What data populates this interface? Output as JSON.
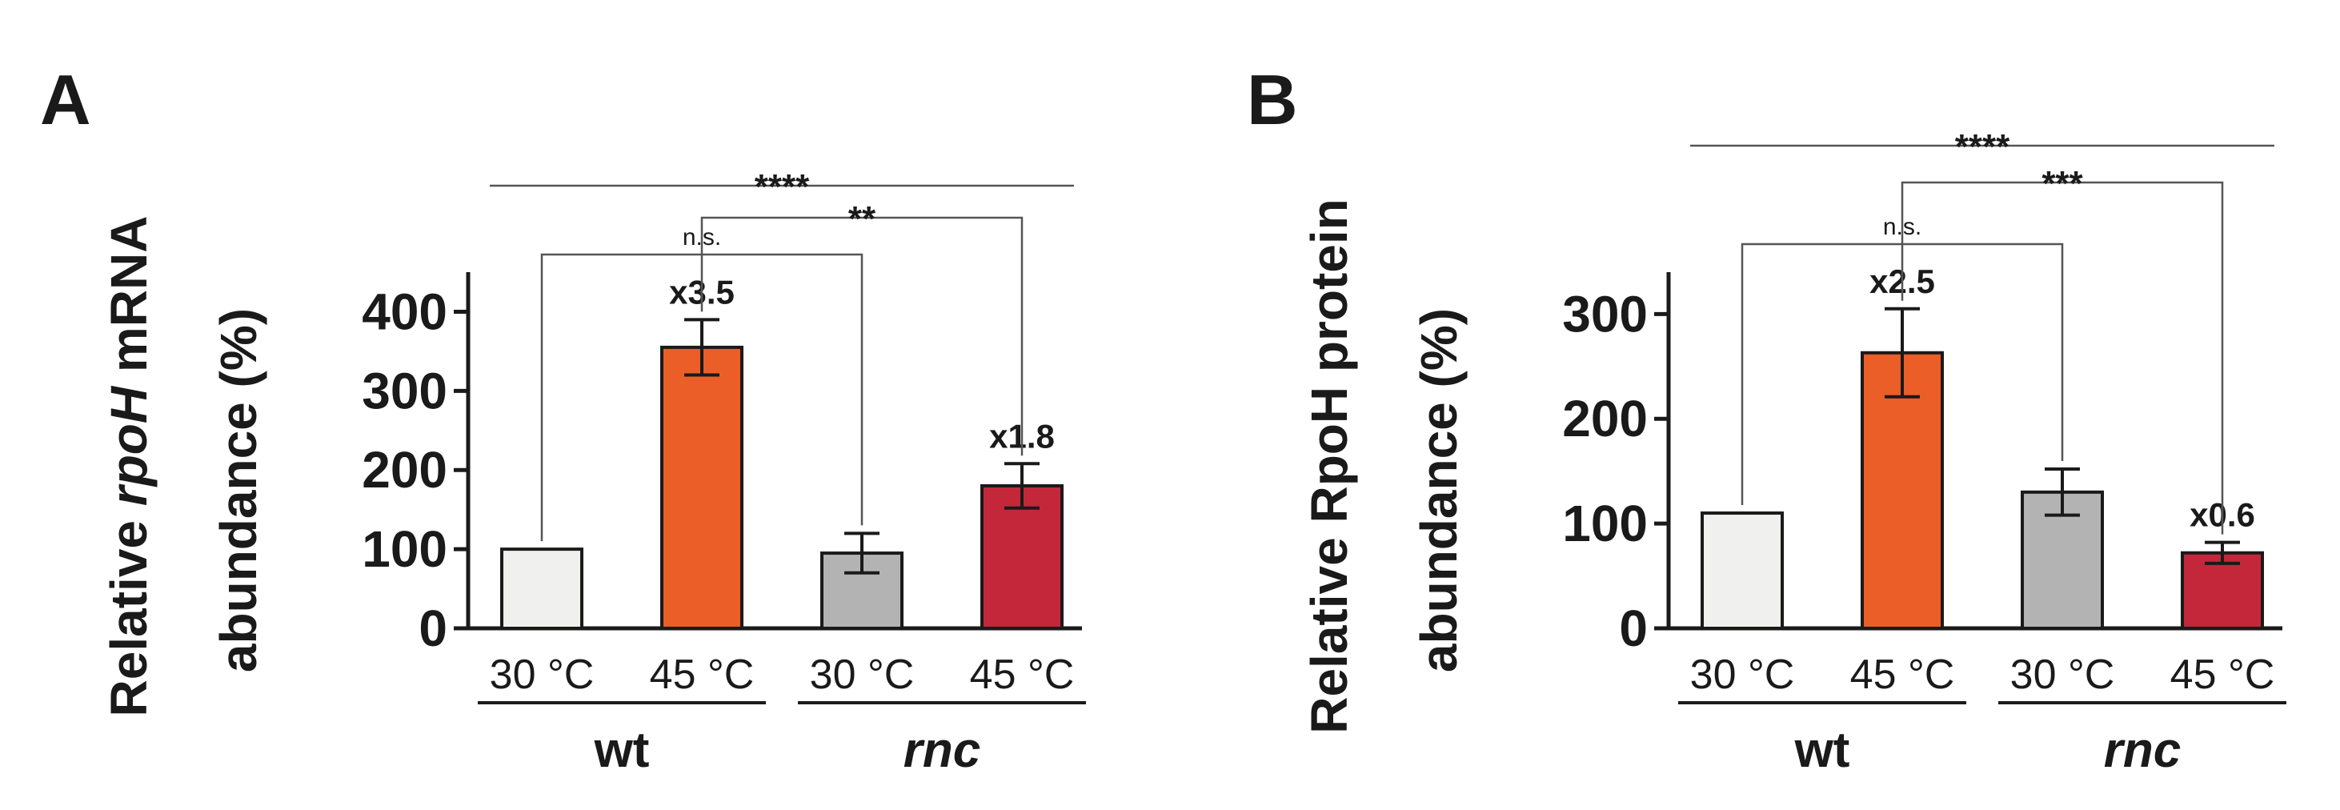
{
  "chart_data": [
    {
      "type": "bar",
      "panel_label": "A",
      "ylabel_parts": [
        "Relative ",
        "rpoH",
        " mRNA",
        "abundance (%)"
      ],
      "ylim": [
        0,
        450
      ],
      "yticks": [
        0,
        100,
        200,
        300,
        400
      ],
      "categories": [
        "30 °C",
        "45 °C",
        "30 °C",
        "45 °C"
      ],
      "groups": [
        {
          "label": "wt",
          "italic": false
        },
        {
          "label": "rnc",
          "italic": true
        }
      ],
      "values": [
        100,
        355,
        95,
        180
      ],
      "errors": [
        0,
        35,
        25,
        28
      ],
      "colors": [
        "#f0f0ee",
        "#eb5e27",
        "#b3b3b3",
        "#c4273a"
      ],
      "fold_labels": [
        "",
        "x3.5",
        "",
        "x1.8"
      ],
      "significance": [
        {
          "from": 0,
          "to": 2,
          "label": "n.s."
        },
        {
          "from": 1,
          "to": 3,
          "label": "**"
        },
        {
          "from": 0,
          "to": 3,
          "label": "****"
        }
      ]
    },
    {
      "type": "bar",
      "panel_label": "B",
      "ylabel_parts": [
        "Relative RpoH",
        "",
        " protein",
        "abundance (%)"
      ],
      "ylim": [
        0,
        340
      ],
      "yticks": [
        0,
        100,
        200,
        300
      ],
      "categories": [
        "30 °C",
        "45 °C",
        "30 °C",
        "45 °C"
      ],
      "groups": [
        {
          "label": "wt",
          "italic": false
        },
        {
          "label": "rnc",
          "italic": true
        }
      ],
      "values": [
        110,
        263,
        130,
        72
      ],
      "errors": [
        0,
        42,
        22,
        10
      ],
      "colors": [
        "#f0f0ee",
        "#eb5e27",
        "#b3b3b3",
        "#c4273a"
      ],
      "fold_labels": [
        "",
        "x2.5",
        "",
        "x0.6"
      ],
      "significance": [
        {
          "from": 0,
          "to": 2,
          "label": "n.s."
        },
        {
          "from": 1,
          "to": 3,
          "label": "***"
        },
        {
          "from": 0,
          "to": 3,
          "label": "****"
        }
      ]
    }
  ]
}
